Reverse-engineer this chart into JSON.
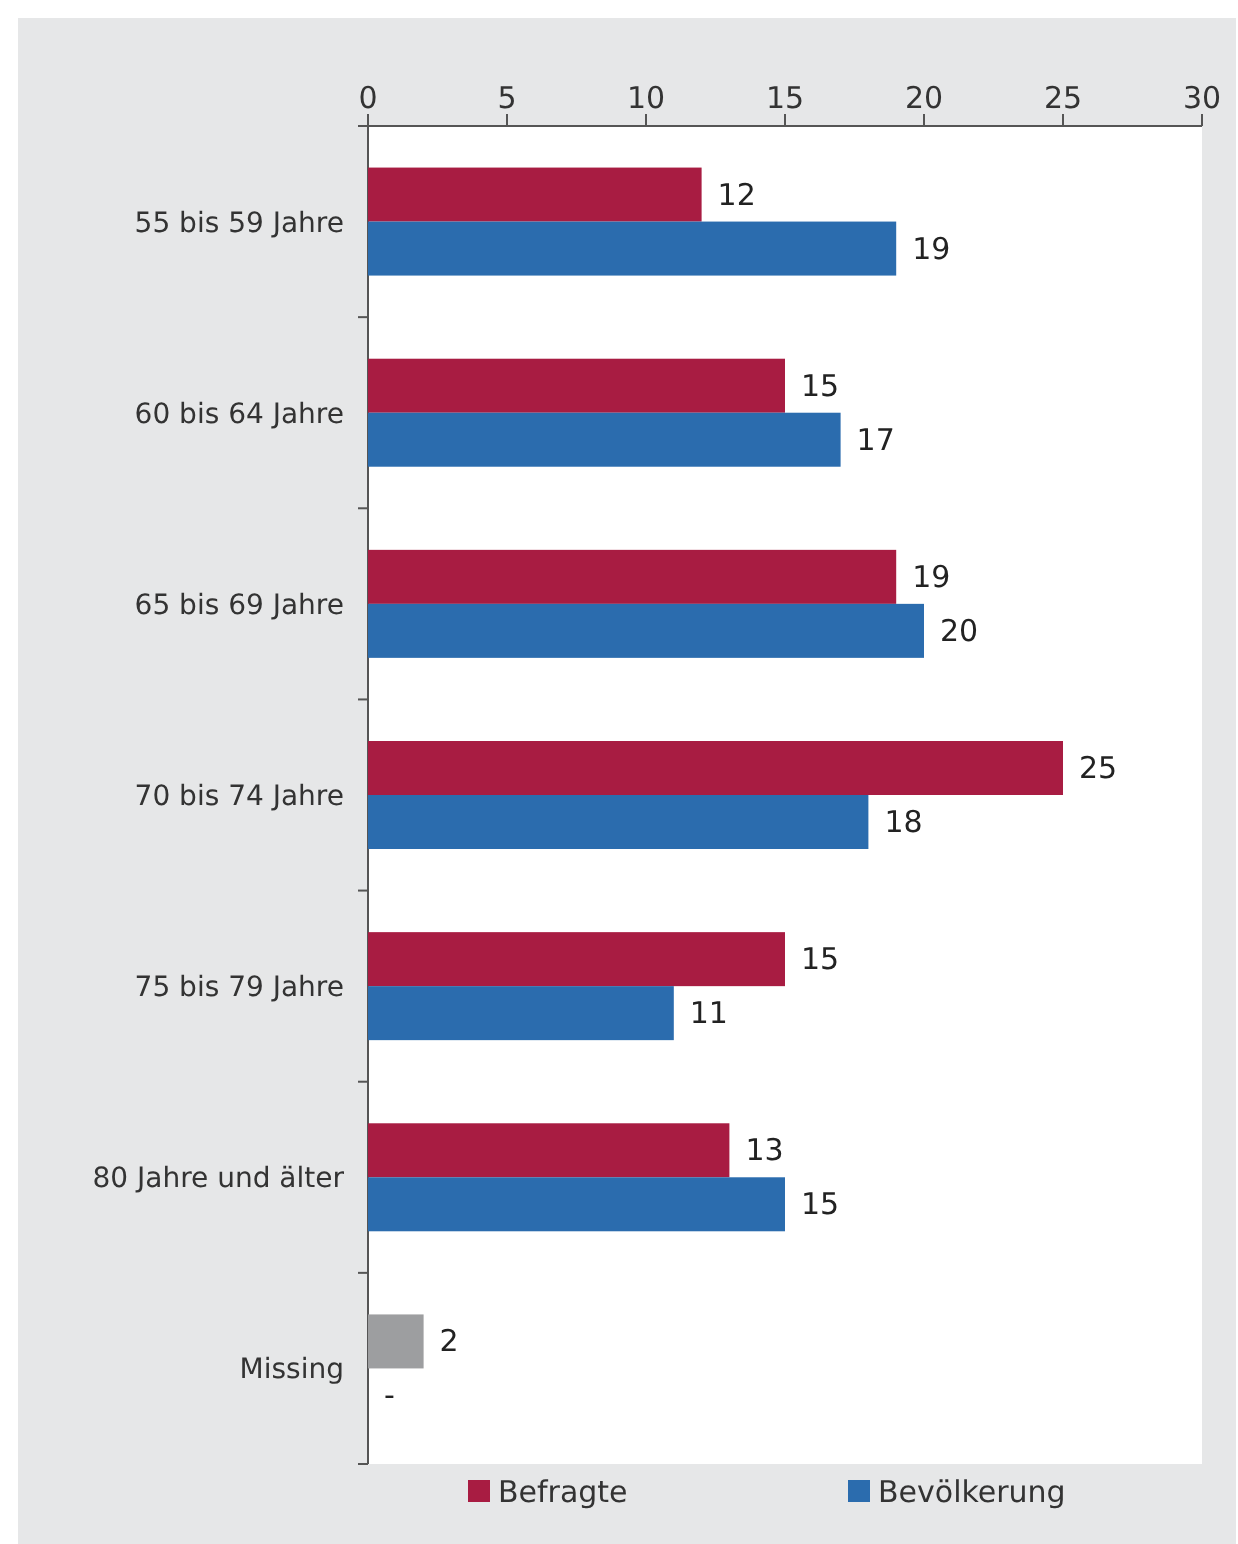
{
  "chart_data": {
    "type": "bar",
    "orientation": "horizontal",
    "categories": [
      "55 bis 59 Jahre",
      "60 bis 64 Jahre",
      "65 bis 69 Jahre",
      "70 bis 74 Jahre",
      "75 bis 79 Jahre",
      "80 Jahre und älter",
      "Missing"
    ],
    "series": [
      {
        "name": "Befragte",
        "color": "#a81c42",
        "colors": [
          "#a81c42",
          "#a81c42",
          "#a81c42",
          "#a81c42",
          "#a81c42",
          "#a81c42",
          "#9d9ea0"
        ],
        "values": [
          12,
          15,
          19,
          25,
          15,
          13,
          2
        ],
        "value_labels": [
          "12",
          "15",
          "19",
          "25",
          "15",
          "13",
          "2"
        ]
      },
      {
        "name": "Bevölkerung",
        "color": "#2b6cae",
        "values": [
          19,
          17,
          20,
          18,
          11,
          15,
          null
        ],
        "value_labels": [
          "19",
          "17",
          "20",
          "18",
          "11",
          "15",
          "-"
        ]
      }
    ],
    "xlim": [
      0,
      30
    ],
    "xticks": [
      0,
      5,
      10,
      15,
      20,
      25,
      30
    ],
    "grid": false,
    "legend": "bottom"
  }
}
